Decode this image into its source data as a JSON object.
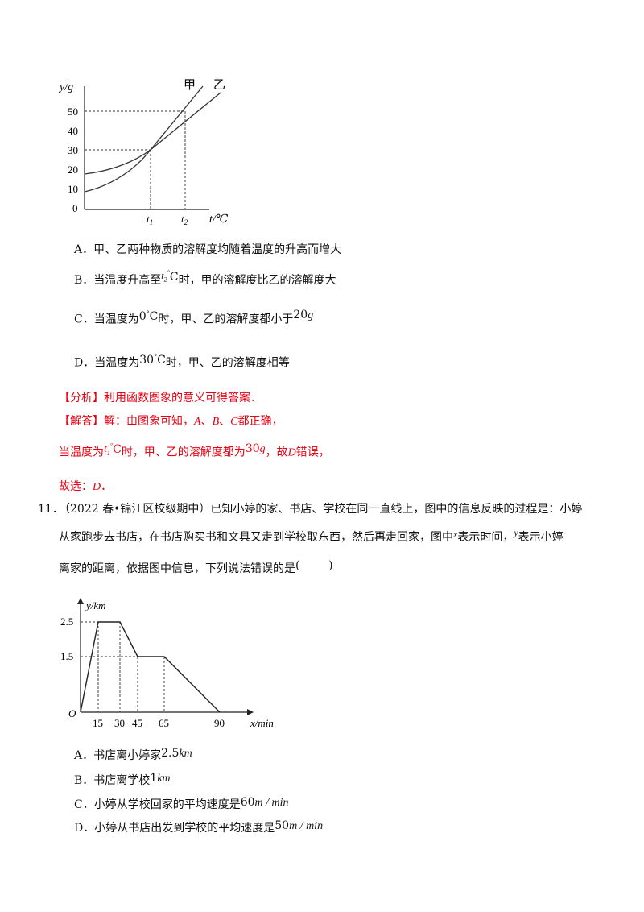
{
  "chart1": {
    "y_axis_label": "y/g",
    "x_axis_label": "t/℃",
    "y_ticks": [
      "0",
      "10",
      "20",
      "30",
      "40",
      "50"
    ],
    "x_ticks": [
      "t1",
      "t2"
    ],
    "curve_labels": [
      "甲",
      "乙"
    ]
  },
  "q10": {
    "optA": "A．甲、乙两种物质的溶解度均随着温度的升高而增大",
    "optB_pre": "B．当温度升高至",
    "optB_temp_t": "t",
    "optB_temp_sub": "2",
    "optB_temp_sup": "°",
    "optB_temp_c": "C",
    "optB_post": "时，甲的溶解度比乙的溶解度大",
    "optC_pre": "C．当温度为",
    "optC_temp": "0",
    "optC_sup": "°",
    "optC_c": "C",
    "optC_mid": "时，甲、乙的溶解度都小于",
    "optC_val": "20",
    "optC_unit": "g",
    "optD_pre": "D．当温度为",
    "optD_temp": "30",
    "optD_sup": "°",
    "optD_c": "C",
    "optD_post": "时，甲、乙的溶解度相等"
  },
  "analysis": {
    "fenxi": "【分析】利用函数图象的意义可得答案．",
    "jieda_pre": "【解答】解：由图象可知，",
    "A": "A",
    "sep1": "、",
    "B": "B",
    "sep2": "、",
    "C": "C",
    "jieda_post": "都正确，",
    "line3_pre": "当温度为",
    "line3_t": "t",
    "line3_sub": "1",
    "line3_sup": "°",
    "line3_c": "C",
    "line3_mid": "时，甲、乙的溶解度都为",
    "line3_val": "30",
    "line3_unit": "g",
    "line3_comma": "，故",
    "line3_D": "D",
    "line3_post": "错误，",
    "choose_pre": "故选：",
    "choose_ans": "D",
    "choose_post": "．"
  },
  "q11": {
    "number": "11．",
    "line1": "（2022 春•锦江区校级期中）已知小婷的家、书店、学校在同一直线上，图中的信息反映的过程是：小婷",
    "line2_pre": "从家跑步去书店，在书店购买书和文具又走到学校取东西，然后再走回家，图中",
    "line2_x": "x",
    "line2_mid": "表示时间，",
    "line2_y": "y",
    "line2_post": "表示小婷",
    "line3": "离家的距离，依据图中信息，下列说法错误的是",
    "line3_paren": "(        )",
    "optA_pre": "A．书店离小婷家",
    "optA_val": "2.5",
    "optA_unit": "km",
    "optB_pre": "B．书店离学校",
    "optB_val": "1",
    "optB_unit": "km",
    "optC_pre": "C．小婷从学校回家的平均速度是",
    "optC_val": "60",
    "optC_unit": "m / min",
    "optD_pre": "D．小婷从书店出发到学校的平均速度是",
    "optD_val": "50",
    "optD_unit": "m / min"
  },
  "chart2": {
    "y_axis_label": "y/km",
    "x_axis_label": "x/min",
    "origin": "O",
    "y_ticks": [
      "1.5",
      "2.5"
    ],
    "x_ticks": [
      "15",
      "30",
      "45",
      "65",
      "90"
    ]
  },
  "chart_data": [
    {
      "type": "line",
      "xlabel": "t/℃",
      "ylabel": "y/g",
      "ylim": [
        0,
        50
      ],
      "y_ticks": [
        0,
        10,
        20,
        30,
        40,
        50
      ],
      "x_ticks": [
        "t1",
        "t2"
      ],
      "series": [
        {
          "name": "甲",
          "points": [
            [
              "0",
              8
            ],
            [
              "t1",
              30
            ],
            [
              "t2",
              50
            ]
          ]
        },
        {
          "name": "乙",
          "points": [
            [
              "0",
              17
            ],
            [
              "t1",
              30
            ]
          ]
        }
      ],
      "grid": false
    },
    {
      "type": "line",
      "xlabel": "x/min",
      "ylabel": "y/km",
      "x": [
        0,
        15,
        30,
        45,
        65,
        90
      ],
      "values": [
        0,
        2.5,
        2.5,
        1.5,
        1.5,
        0
      ],
      "y_ticks": [
        1.5,
        2.5
      ],
      "x_ticks": [
        15,
        30,
        45,
        65,
        90
      ],
      "grid": false
    }
  ]
}
